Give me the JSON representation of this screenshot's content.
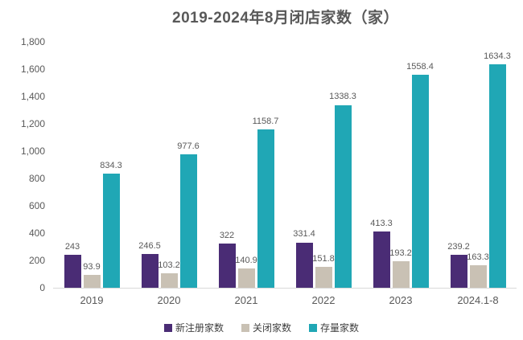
{
  "chart_data": {
    "type": "bar",
    "title": "2019-2024年8月闭店家数（家）",
    "categories": [
      "2019",
      "2020",
      "2021",
      "2022",
      "2023",
      "2024.1-8"
    ],
    "series": [
      {
        "name": "新注册家数",
        "color": "#4A2C75",
        "values": [
          243,
          246.5,
          322,
          331.4,
          413.3,
          239.2
        ],
        "labels": [
          "243",
          "246.5",
          "322",
          "331.4",
          "413.3",
          "239.2"
        ]
      },
      {
        "name": "关闭家数",
        "color": "#C9C1B4",
        "values": [
          93.9,
          103.2,
          140.9,
          151.8,
          193.2,
          163.3
        ],
        "labels": [
          "93.9",
          "103.2",
          "140.9",
          "151.8",
          "193.2",
          "163.3"
        ]
      },
      {
        "name": "存量家数",
        "color": "#20A7B5",
        "values": [
          834.3,
          977.6,
          1158.7,
          1338.3,
          1558.4,
          1634.3
        ],
        "labels": [
          "834.3",
          "977.6",
          "1158.7",
          "1338.3",
          "1558.4",
          "1634.3"
        ]
      }
    ],
    "ylim": [
      0,
      1800
    ],
    "ytick_interval": 200,
    "ytick_labels": [
      "0",
      "200",
      "400",
      "600",
      "800",
      "1,000",
      "1,200",
      "1,400",
      "1,600",
      "1,800"
    ],
    "grid": false,
    "legend_position": "bottom",
    "axis_line_color": "#D9D9D9",
    "text_color": "#595959"
  }
}
